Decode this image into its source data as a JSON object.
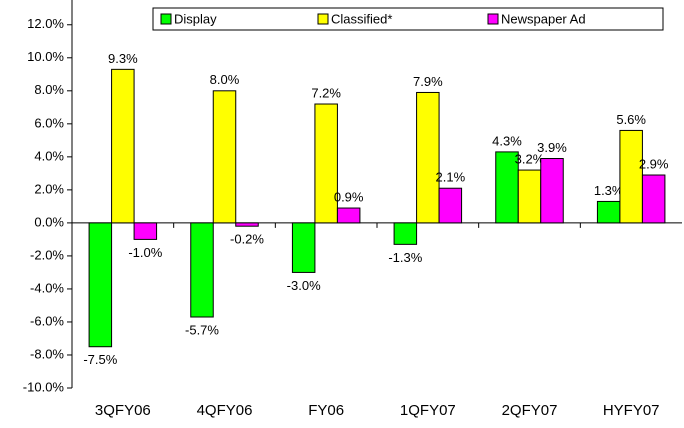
{
  "chart_data": {
    "type": "bar",
    "categories": [
      "3QFY06",
      "4QFY06",
      "FY06",
      "1QFY07",
      "2QFY07",
      "HYFY07"
    ],
    "series": [
      {
        "name": "Display",
        "color": "#00ff00",
        "values": [
          -7.5,
          -5.7,
          -3.0,
          -1.3,
          4.3,
          1.3
        ],
        "value_labels": [
          "-7.5%",
          "-5.7%",
          "-3.0%",
          "-1.3%",
          "4.3%",
          "1.3%"
        ]
      },
      {
        "name": "Classified*",
        "color": "#ffff00",
        "values": [
          9.3,
          8.0,
          7.2,
          7.9,
          3.2,
          5.6
        ],
        "value_labels": [
          "9.3%",
          "8.0%",
          "7.2%",
          "7.9%",
          "3.2%",
          "5.6%"
        ]
      },
      {
        "name": "Newspaper Ad",
        "color": "#ff00ff",
        "values": [
          -1.0,
          -0.2,
          0.9,
          2.1,
          3.9,
          2.9
        ],
        "value_labels": [
          "-1.0%",
          "-0.2%",
          "0.9%",
          "2.1%",
          "3.9%",
          "2.9%"
        ]
      }
    ],
    "ylim": [
      -10,
      13.5
    ],
    "yticks": [
      {
        "value": -10,
        "label": "-10.0%"
      },
      {
        "value": -8,
        "label": "-8.0%"
      },
      {
        "value": -6,
        "label": "-6.0%"
      },
      {
        "value": -4,
        "label": "-4.0%"
      },
      {
        "value": -2,
        "label": "-2.0%"
      },
      {
        "value": 0,
        "label": "0.0%"
      },
      {
        "value": 2,
        "label": "2.0%"
      },
      {
        "value": 4,
        "label": "4.0%"
      },
      {
        "value": 6,
        "label": "6.0%"
      },
      {
        "value": 8,
        "label": "8.0%"
      },
      {
        "value": 10,
        "label": "10.0%"
      },
      {
        "value": 12,
        "label": "12.0%"
      }
    ],
    "legend": "top"
  }
}
